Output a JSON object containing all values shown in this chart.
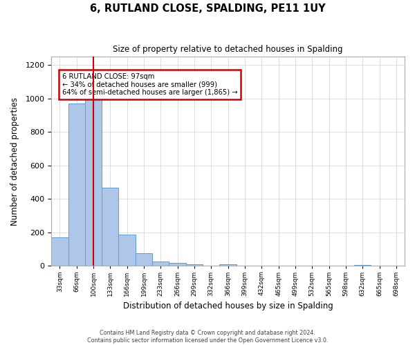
{
  "title": "6, RUTLAND CLOSE, SPALDING, PE11 1UY",
  "subtitle": "Size of property relative to detached houses in Spalding",
  "xlabel": "Distribution of detached houses by size in Spalding",
  "ylabel": "Number of detached properties",
  "bin_labels": [
    "33sqm",
    "66sqm",
    "100sqm",
    "133sqm",
    "166sqm",
    "199sqm",
    "233sqm",
    "266sqm",
    "299sqm",
    "332sqm",
    "366sqm",
    "399sqm",
    "432sqm",
    "465sqm",
    "499sqm",
    "532sqm",
    "565sqm",
    "598sqm",
    "632sqm",
    "665sqm",
    "698sqm"
  ],
  "bar_values": [
    170,
    970,
    1000,
    465,
    185,
    75,
    25,
    18,
    10,
    0,
    10,
    0,
    0,
    0,
    0,
    0,
    0,
    0,
    5,
    0,
    0
  ],
  "bar_color": "#aec6e8",
  "bar_edgecolor": "#5b9bd5",
  "highlight_bin_index": 2,
  "annotation_title": "6 RUTLAND CLOSE: 97sqm",
  "annotation_line1": "← 34% of detached houses are smaller (999)",
  "annotation_line2": "64% of semi-detached houses are larger (1,865) →",
  "annotation_box_color": "#ffffff",
  "annotation_box_edgecolor": "#cc0000",
  "red_line_color": "#cc0000",
  "ylim": [
    0,
    1250
  ],
  "yticks": [
    0,
    200,
    400,
    600,
    800,
    1000,
    1200
  ],
  "footer_line1": "Contains HM Land Registry data © Crown copyright and database right 2024.",
  "footer_line2": "Contains public sector information licensed under the Open Government Licence v3.0.",
  "background_color": "#ffffff",
  "grid_color": "#d0d0d0"
}
